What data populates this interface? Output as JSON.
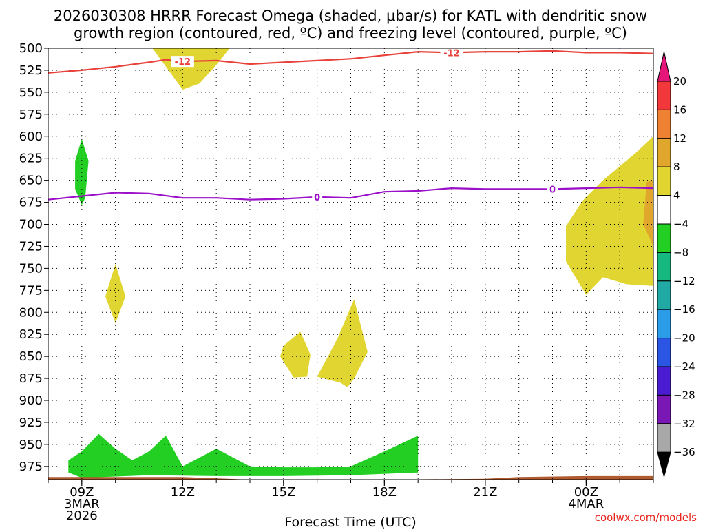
{
  "chart_data": {
    "type": "contour",
    "title_lines": [
      "2026030308 HRRR Forecast Omega (shaded, μbar/s) for KATL with dendritic snow",
      "growth region (contoured, red, ºC) and freezing level (contoured, purple, ºC)"
    ],
    "xlabel": "Forecast Time (UTC)",
    "credit": "coolwx.com/models",
    "x_hours_range": [
      8,
      26
    ],
    "y_pressure_range": [
      500,
      990
    ],
    "y_scale": "linear-pressure",
    "grid": "dotted",
    "x_ticks": [
      {
        "hour": 9,
        "lines": [
          "09Z",
          "3MAR",
          "2026"
        ]
      },
      {
        "hour": 12,
        "lines": [
          "12Z"
        ]
      },
      {
        "hour": 15,
        "lines": [
          "15Z"
        ]
      },
      {
        "hour": 18,
        "lines": [
          "18Z"
        ]
      },
      {
        "hour": 21,
        "lines": [
          "21Z"
        ]
      },
      {
        "hour": 24,
        "lines": [
          "00Z",
          "4MAR"
        ]
      }
    ],
    "y_ticks": [
      500,
      525,
      550,
      575,
      600,
      625,
      650,
      675,
      700,
      725,
      750,
      775,
      800,
      825,
      850,
      875,
      900,
      925,
      950,
      975
    ],
    "contours": [
      {
        "name": "dendritic snow growth region",
        "label": "-12",
        "color": "#e8413a",
        "label_at_hours": [
          12,
          20
        ],
        "points": [
          [
            8,
            528
          ],
          [
            9,
            525
          ],
          [
            10,
            521
          ],
          [
            11,
            516
          ],
          [
            11.5,
            513
          ],
          [
            12,
            515
          ],
          [
            13,
            514
          ],
          [
            14,
            518
          ],
          [
            15,
            516
          ],
          [
            16,
            514
          ],
          [
            17,
            512
          ],
          [
            18,
            508
          ],
          [
            19,
            504
          ],
          [
            20,
            505
          ],
          [
            21,
            504
          ],
          [
            22,
            504
          ],
          [
            23,
            503
          ],
          [
            24,
            505
          ],
          [
            25,
            505
          ],
          [
            26,
            506
          ]
        ]
      },
      {
        "name": "freezing level",
        "label": "0",
        "color": "#9b10c8",
        "label_at_hours": [
          16,
          23
        ],
        "points": [
          [
            8,
            672
          ],
          [
            9,
            668
          ],
          [
            10,
            664
          ],
          [
            11,
            665
          ],
          [
            12,
            670
          ],
          [
            13,
            670
          ],
          [
            14,
            672
          ],
          [
            15,
            671
          ],
          [
            16,
            669
          ],
          [
            17,
            670
          ],
          [
            18,
            663
          ],
          [
            19,
            662
          ],
          [
            20,
            659
          ],
          [
            21,
            660
          ],
          [
            22,
            660
          ],
          [
            23,
            660
          ],
          [
            24,
            659
          ],
          [
            25,
            658
          ],
          [
            26,
            659
          ]
        ]
      }
    ],
    "regions": [
      {
        "omega_bin": "4 to 8",
        "color": "#e1d631",
        "points": [
          [
            11.1,
            500
          ],
          [
            12,
            547
          ],
          [
            12.5,
            540
          ],
          [
            13,
            519
          ],
          [
            13.4,
            500
          ]
        ]
      },
      {
        "omega_bin": "4 to 8",
        "color": "#e1d631",
        "points": [
          [
            9.7,
            782
          ],
          [
            10,
            745
          ],
          [
            10.3,
            782
          ],
          [
            10,
            812
          ]
        ]
      },
      {
        "omega_bin": "4 to 8",
        "color": "#e1d631",
        "points": [
          [
            15.0,
            838
          ],
          [
            15.5,
            822
          ],
          [
            15.8,
            848
          ],
          [
            15.7,
            873
          ],
          [
            15.3,
            874
          ],
          [
            14.9,
            850
          ]
        ]
      },
      {
        "omega_bin": "4 to 8",
        "color": "#e1d631",
        "points": [
          [
            16.0,
            873
          ],
          [
            16.6,
            830
          ],
          [
            17.1,
            785
          ],
          [
            17.5,
            845
          ],
          [
            17.1,
            875
          ],
          [
            16.9,
            885
          ],
          [
            16.7,
            880
          ]
        ]
      },
      {
        "omega_bin": "4 to 8",
        "color": "#e1d631",
        "points": [
          [
            23.4,
            702
          ],
          [
            23.9,
            673
          ],
          [
            24.5,
            650
          ],
          [
            25.5,
            618
          ],
          [
            26,
            600
          ],
          [
            26,
            770
          ],
          [
            25.2,
            768
          ],
          [
            24.5,
            760
          ],
          [
            24,
            780
          ],
          [
            23.4,
            742
          ]
        ]
      },
      {
        "omega_bin": "8 to 12",
        "color": "#e1a72c",
        "points": [
          [
            25.8,
            652
          ],
          [
            26,
            650
          ],
          [
            26,
            725
          ],
          [
            25.7,
            700
          ]
        ]
      },
      {
        "omega_bin": "-8 to -4",
        "color": "#22cf22",
        "points": [
          [
            8.8,
            628
          ],
          [
            9,
            603
          ],
          [
            9.2,
            628
          ],
          [
            9.1,
            670
          ],
          [
            9,
            678
          ],
          [
            8.8,
            660
          ]
        ]
      },
      {
        "omega_bin": "-8 to -4",
        "color": "#22cf22",
        "points": [
          [
            8.6,
            968
          ],
          [
            9,
            958
          ],
          [
            9.5,
            938
          ],
          [
            10,
            955
          ],
          [
            10.5,
            968
          ],
          [
            11,
            958
          ],
          [
            11.5,
            940
          ],
          [
            12,
            975
          ],
          [
            13,
            955
          ],
          [
            14,
            975
          ],
          [
            15,
            976
          ],
          [
            16,
            976
          ],
          [
            17,
            975
          ],
          [
            18,
            958
          ],
          [
            19,
            940
          ],
          [
            19,
            982
          ],
          [
            17,
            985
          ],
          [
            15,
            986
          ],
          [
            13,
            986
          ],
          [
            11,
            985
          ],
          [
            9,
            988
          ],
          [
            8.6,
            982
          ]
        ]
      }
    ],
    "terrain": {
      "color": "#b05a30",
      "points": [
        [
          8,
          987
        ],
        [
          12,
          987
        ],
        [
          14,
          990
        ],
        [
          18,
          990
        ],
        [
          21,
          989
        ],
        [
          22,
          987
        ],
        [
          24,
          986
        ],
        [
          26,
          986
        ],
        [
          26,
          992
        ],
        [
          8,
          992
        ]
      ]
    },
    "colorbar": {
      "labels": [
        "20",
        "16",
        "12",
        "8",
        "4",
        "−4",
        "−8",
        "−12",
        "−16",
        "−20",
        "−24",
        "−28",
        "−32",
        "−36"
      ],
      "colors": [
        "#f3383b",
        "#ef8232",
        "#e1a72c",
        "#e1d631",
        "#ffffff",
        "#22cf22",
        "#17b87f",
        "#21a9a3",
        "#2a9ce8",
        "#2a55e5",
        "#4b1bd2",
        "#7a17b5",
        "#a8a8a8"
      ],
      "top_arrow_color": "#e5157a",
      "bottom_arrow_color": "#000000"
    }
  }
}
